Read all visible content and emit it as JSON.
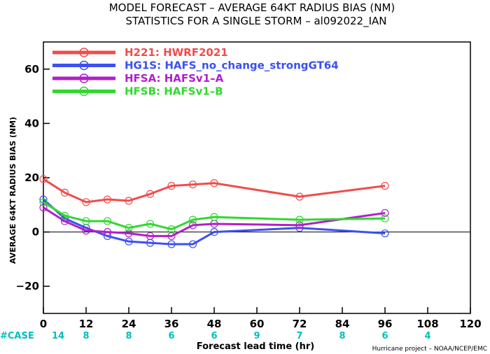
{
  "chart_data": {
    "type": "line",
    "title": "MODEL FORECAST – AVERAGE 64KT RADIUS BIAS (NM)",
    "subtitle": "STATISTICS FOR A SINGLE STORM – al092022_IAN",
    "xlabel": "Forecast lead time (hr)",
    "ylabel": "AVERAGE 64KT RADIUS BIAS (NM)",
    "xlim": [
      0,
      120
    ],
    "ylim": [
      -30,
      70
    ],
    "xticks": [
      "0",
      "12",
      "24",
      "36",
      "48",
      "60",
      "72",
      "84",
      "96",
      "108",
      "120"
    ],
    "yticks": [
      "60",
      "40",
      "20",
      "0",
      "−20"
    ],
    "grid": false,
    "legend_position": "top-left",
    "series": [
      {
        "name": "H221: HWRF2021",
        "color": "#f04c4c",
        "x": [
          0,
          6,
          12,
          18,
          24,
          30,
          36,
          42,
          48,
          72,
          96
        ],
        "y": [
          19.5,
          14.5,
          11,
          12,
          11.5,
          14,
          17,
          17.5,
          18,
          13,
          17
        ]
      },
      {
        "name": "HG1S: HAFS_no_change_strongGT64",
        "color": "#3c50f0",
        "x": [
          0,
          6,
          12,
          18,
          24,
          30,
          36,
          42,
          48,
          72,
          96
        ],
        "y": [
          12,
          5,
          1.5,
          -1.5,
          -3.5,
          -4,
          -4.5,
          -4.5,
          0,
          1.5,
          -0.5
        ]
      },
      {
        "name": "HFSA: HAFSv1–A",
        "color": "#b020c8",
        "x": [
          0,
          6,
          12,
          18,
          24,
          30,
          36,
          42,
          48,
          72,
          96
        ],
        "y": [
          9,
          4,
          0.5,
          0,
          -0.5,
          -1.5,
          -1.5,
          2.5,
          3,
          2.5,
          7
        ]
      },
      {
        "name": "HFSB: HAFSv1–B",
        "color": "#30d830",
        "x": [
          0,
          6,
          12,
          18,
          24,
          30,
          36,
          42,
          48,
          72,
          96
        ],
        "y": [
          11,
          6,
          4,
          4,
          1.5,
          3,
          1,
          4.5,
          5.5,
          4.5,
          5
        ]
      }
    ],
    "case_label": "#CASE",
    "case_counts": [
      {
        "x": 0,
        "value": "14"
      },
      {
        "x": 12,
        "value": "8"
      },
      {
        "x": 24,
        "value": "8"
      },
      {
        "x": 36,
        "value": "6"
      },
      {
        "x": 48,
        "value": "6"
      },
      {
        "x": 60,
        "value": "9"
      },
      {
        "x": 72,
        "value": "7"
      },
      {
        "x": 84,
        "value": "8"
      },
      {
        "x": 96,
        "value": "6"
      },
      {
        "x": 108,
        "value": "4"
      }
    ],
    "credit": "Hurricane project – NOAA/NCEP/EMC"
  }
}
